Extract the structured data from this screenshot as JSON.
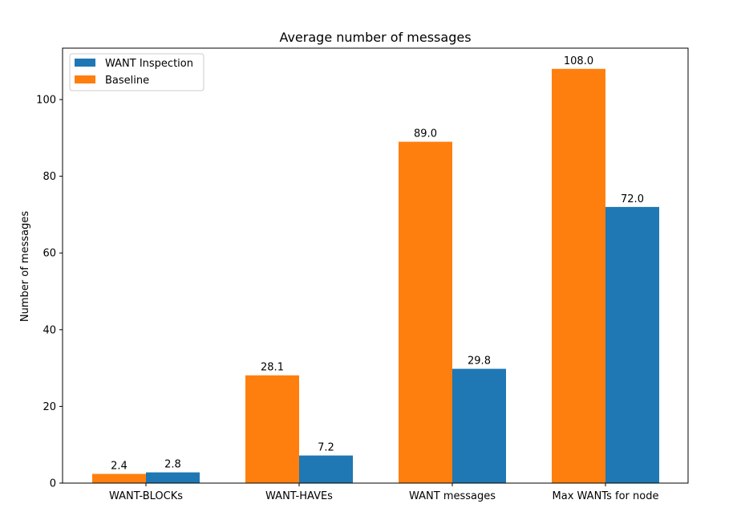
{
  "chart_data": {
    "type": "bar",
    "title": "Average number of messages",
    "xlabel": "",
    "ylabel": "Number of messages",
    "categories": [
      "WANT-BLOCKs",
      "WANT-HAVEs",
      "WANT messages",
      "Max WANTs for node"
    ],
    "series": [
      {
        "name": "Baseline",
        "color": "#ff7f0e",
        "values": [
          2.4,
          28.1,
          89.0,
          108.0
        ],
        "labels": [
          "2.4",
          "28.1",
          "89.0",
          "108.0"
        ]
      },
      {
        "name": "WANT Inspection",
        "color": "#1f77b4",
        "values": [
          2.8,
          7.2,
          29.8,
          72.0
        ],
        "labels": [
          "2.8",
          "7.2",
          "29.8",
          "72.0"
        ]
      }
    ],
    "legend_order": [
      "WANT Inspection",
      "Baseline"
    ],
    "legend_position": "top-left",
    "ylim": [
      0,
      113.4
    ],
    "yticks": [
      0,
      20,
      40,
      60,
      80,
      100
    ],
    "grid": false
  }
}
